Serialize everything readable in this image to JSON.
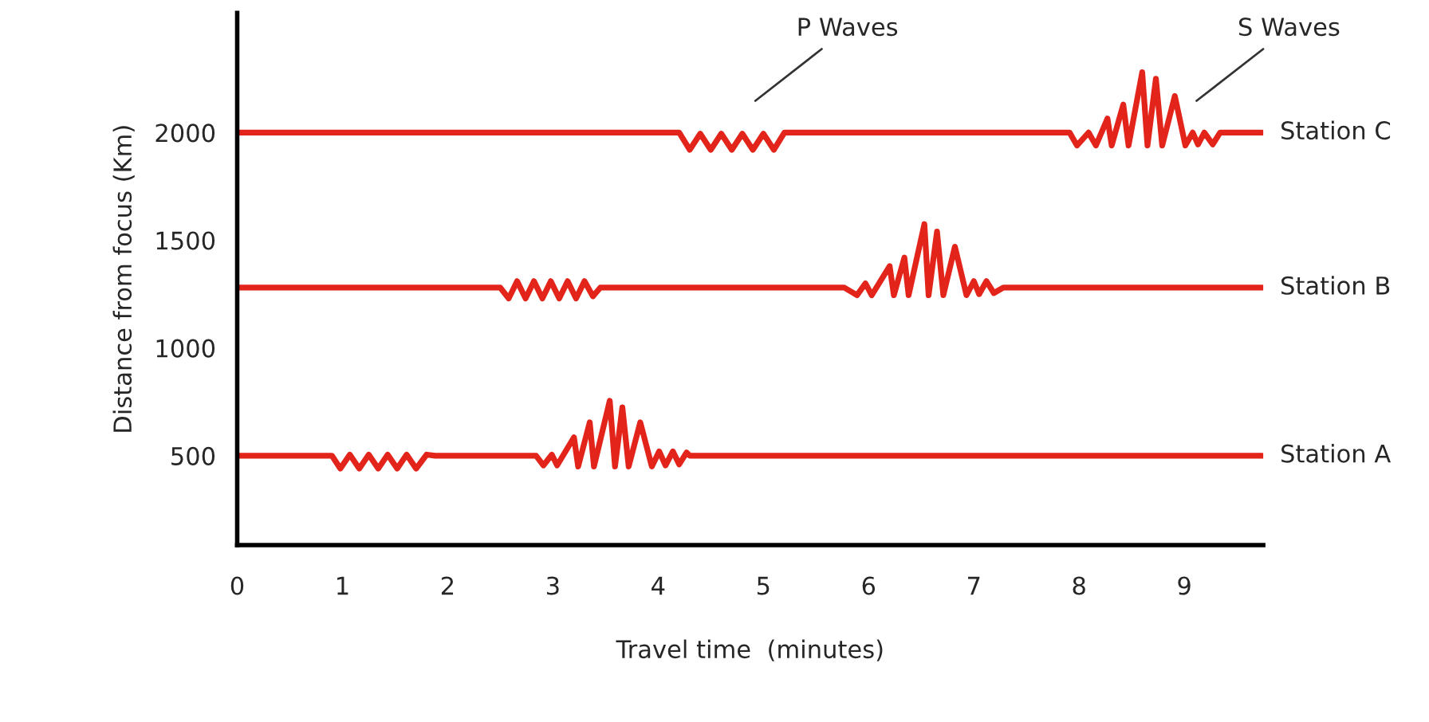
{
  "chart_data": {
    "type": "line",
    "xlabel": "Travel time  (minutes)",
    "ylabel": "Distance from focus (Km)",
    "xlim": [
      0,
      9.75
    ],
    "ylim": [
      85,
      2555
    ],
    "xticks": [
      0,
      1,
      2,
      3,
      4,
      5,
      6,
      7,
      8,
      9
    ],
    "yticks": [
      500,
      1000,
      1500,
      2000
    ],
    "series": [
      {
        "name": "Station C",
        "color": "#e3241b",
        "x": [
          0,
          4.2,
          4.3,
          4.4,
          4.5,
          4.6,
          4.7,
          4.8,
          4.9,
          5.0,
          5.1,
          5.2,
          7.91,
          7.98,
          8.09,
          8.16,
          8.27,
          8.31,
          8.42,
          8.47,
          8.6,
          8.65,
          8.73,
          8.79,
          8.91,
          9.01,
          9.08,
          9.13,
          9.19,
          9.27,
          9.34,
          9.74
        ],
        "values": [
          2000,
          2000,
          1920,
          1995,
          1920,
          1995,
          1920,
          1995,
          1920,
          1995,
          1920,
          2000,
          2000,
          1940,
          2000,
          1940,
          2065,
          1940,
          2130,
          1940,
          2280,
          1940,
          2250,
          1940,
          2170,
          1940,
          2000,
          1945,
          2000,
          1945,
          2000,
          2000
        ]
      },
      {
        "name": "Station B",
        "color": "#e3241b",
        "x": [
          0,
          2.5,
          2.58,
          2.66,
          2.74,
          2.82,
          2.9,
          2.98,
          3.06,
          3.14,
          3.22,
          3.3,
          3.38,
          3.45,
          5.77,
          5.89,
          5.97,
          6.03,
          6.2,
          6.24,
          6.34,
          6.38,
          6.53,
          6.57,
          6.65,
          6.71,
          6.82,
          6.93,
          7.0,
          7.05,
          7.12,
          7.19,
          7.28,
          9.74
        ],
        "values": [
          1280,
          1280,
          1230,
          1310,
          1230,
          1310,
          1230,
          1310,
          1230,
          1310,
          1230,
          1310,
          1240,
          1280,
          1280,
          1245,
          1300,
          1245,
          1380,
          1245,
          1420,
          1245,
          1575,
          1245,
          1540,
          1245,
          1470,
          1245,
          1310,
          1250,
          1310,
          1255,
          1280,
          1280
        ]
      },
      {
        "name": "Station A",
        "color": "#e3241b",
        "x": [
          0,
          0.9,
          0.98,
          1.07,
          1.16,
          1.25,
          1.34,
          1.43,
          1.52,
          1.61,
          1.7,
          1.8,
          1.88,
          2.84,
          2.91,
          2.99,
          3.04,
          3.2,
          3.24,
          3.35,
          3.39,
          3.54,
          3.59,
          3.66,
          3.72,
          3.83,
          3.94,
          4.01,
          4.07,
          4.14,
          4.2,
          4.27,
          4.3,
          9.74
        ],
        "values": [
          500,
          500,
          440,
          505,
          440,
          505,
          440,
          505,
          440,
          505,
          440,
          505,
          500,
          500,
          455,
          505,
          455,
          585,
          450,
          655,
          450,
          755,
          450,
          725,
          450,
          655,
          450,
          520,
          455,
          520,
          460,
          515,
          500,
          500
        ]
      }
    ],
    "annotations": [
      "P Waves",
      "S Waves"
    ]
  }
}
